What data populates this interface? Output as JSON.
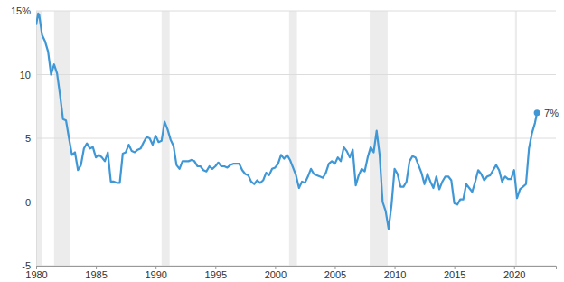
{
  "chart_data": {
    "type": "line",
    "color": "#3f97d6",
    "grid": true,
    "marker": "circle",
    "xlim": [
      1980,
      2023.5
    ],
    "xticks": [
      1980,
      1985,
      1990,
      1995,
      2000,
      2005,
      2010,
      2015,
      2020
    ],
    "ylim": [
      -5,
      15
    ],
    "yticks": [
      -5,
      0,
      5,
      10,
      {
        "value": 15,
        "label": "15%"
      }
    ],
    "recessions": [
      [
        1980.0,
        1980.5
      ],
      [
        1981.5,
        1982.83
      ],
      [
        1990.5,
        1991.17
      ],
      [
        2001.17,
        2001.83
      ],
      [
        2007.92,
        2009.42
      ],
      [
        2020.08,
        2020.25
      ]
    ],
    "annotations": [
      {
        "text": "7%",
        "x": 2021.92,
        "y": 7
      }
    ],
    "x": [
      1980.0,
      1980.17,
      1980.25,
      1980.5,
      1980.75,
      1981.0,
      1981.25,
      1981.5,
      1981.75,
      1982.0,
      1982.25,
      1982.5,
      1982.75,
      1983.0,
      1983.25,
      1983.5,
      1983.75,
      1984.0,
      1984.25,
      1984.5,
      1984.75,
      1985.0,
      1985.25,
      1985.5,
      1985.75,
      1986.0,
      1986.25,
      1986.5,
      1986.75,
      1987.0,
      1987.25,
      1987.5,
      1987.75,
      1988.0,
      1988.25,
      1988.5,
      1988.75,
      1989.0,
      1989.25,
      1989.5,
      1989.75,
      1990.0,
      1990.25,
      1990.5,
      1990.75,
      1991.0,
      1991.25,
      1991.5,
      1991.75,
      1992.0,
      1992.25,
      1992.5,
      1992.75,
      1993.0,
      1993.25,
      1993.5,
      1993.75,
      1994.0,
      1994.25,
      1994.5,
      1994.75,
      1995.0,
      1995.25,
      1995.5,
      1995.75,
      1996.0,
      1996.25,
      1996.5,
      1996.75,
      1997.0,
      1997.25,
      1997.5,
      1997.75,
      1998.0,
      1998.25,
      1998.5,
      1998.75,
      1999.0,
      1999.25,
      1999.5,
      1999.75,
      2000.0,
      2000.25,
      2000.5,
      2000.75,
      2001.0,
      2001.25,
      2001.5,
      2001.75,
      2002.0,
      2002.25,
      2002.5,
      2002.75,
      2003.0,
      2003.25,
      2003.5,
      2003.75,
      2004.0,
      2004.25,
      2004.5,
      2004.75,
      2005.0,
      2005.25,
      2005.5,
      2005.75,
      2006.0,
      2006.25,
      2006.5,
      2006.75,
      2007.0,
      2007.25,
      2007.5,
      2007.75,
      2008.0,
      2008.25,
      2008.5,
      2008.75,
      2009.0,
      2009.25,
      2009.5,
      2009.75,
      2010.0,
      2010.25,
      2010.5,
      2010.75,
      2011.0,
      2011.25,
      2011.5,
      2011.75,
      2012.0,
      2012.25,
      2012.5,
      2012.75,
      2013.0,
      2013.25,
      2013.5,
      2013.75,
      2014.0,
      2014.25,
      2014.5,
      2014.75,
      2015.0,
      2015.25,
      2015.5,
      2015.75,
      2016.0,
      2016.25,
      2016.5,
      2016.75,
      2017.0,
      2017.25,
      2017.5,
      2017.75,
      2018.0,
      2018.25,
      2018.5,
      2018.75,
      2019.0,
      2019.25,
      2019.5,
      2019.75,
      2020.0,
      2020.25,
      2020.5,
      2020.75,
      2021.0,
      2021.25,
      2021.5,
      2021.75,
      2021.92
    ],
    "values": [
      13.9,
      14.8,
      14.7,
      13.1,
      12.6,
      11.8,
      10.0,
      10.8,
      10.1,
      8.4,
      6.5,
      6.4,
      5.0,
      3.7,
      3.9,
      2.5,
      2.9,
      4.2,
      4.6,
      4.2,
      4.3,
      3.5,
      3.7,
      3.5,
      3.2,
      3.9,
      1.6,
      1.6,
      1.5,
      1.5,
      3.8,
      3.9,
      4.5,
      4.0,
      3.9,
      4.1,
      4.2,
      4.7,
      5.1,
      5.0,
      4.5,
      5.2,
      4.7,
      4.8,
      6.3,
      5.7,
      4.9,
      4.4,
      2.9,
      2.6,
      3.2,
      3.2,
      3.2,
      3.3,
      3.2,
      2.8,
      2.8,
      2.5,
      2.4,
      2.8,
      2.6,
      2.8,
      3.1,
      2.8,
      2.8,
      2.7,
      2.9,
      3.0,
      3.0,
      3.0,
      2.5,
      2.2,
      2.1,
      1.6,
      1.4,
      1.7,
      1.5,
      1.7,
      2.3,
      2.1,
      2.6,
      2.7,
      3.0,
      3.7,
      3.4,
      3.7,
      3.3,
      2.7,
      2.1,
      1.1,
      1.6,
      1.5,
      2.0,
      2.6,
      2.2,
      2.1,
      2.0,
      1.9,
      2.3,
      3.0,
      3.2,
      3.0,
      3.5,
      3.2,
      4.3,
      4.0,
      3.5,
      4.1,
      1.3,
      2.1,
      2.6,
      2.4,
      3.5,
      4.3,
      3.9,
      5.6,
      3.7,
      0.0,
      -0.7,
      -2.1,
      -0.2,
      2.6,
      2.2,
      1.2,
      1.2,
      1.6,
      3.2,
      3.6,
      3.5,
      2.9,
      2.3,
      1.4,
      2.2,
      1.6,
      1.1,
      2.0,
      1.0,
      1.6,
      2.0,
      2.0,
      1.7,
      -0.1,
      -0.2,
      0.2,
      0.2,
      1.4,
      1.1,
      0.8,
      1.6,
      2.5,
      2.2,
      1.7,
      2.0,
      2.1,
      2.5,
      2.9,
      2.5,
      1.6,
      2.0,
      1.8,
      1.8,
      2.5,
      0.3,
      1.0,
      1.2,
      1.4,
      4.2,
      5.4,
      6.2,
      7.0
    ]
  }
}
